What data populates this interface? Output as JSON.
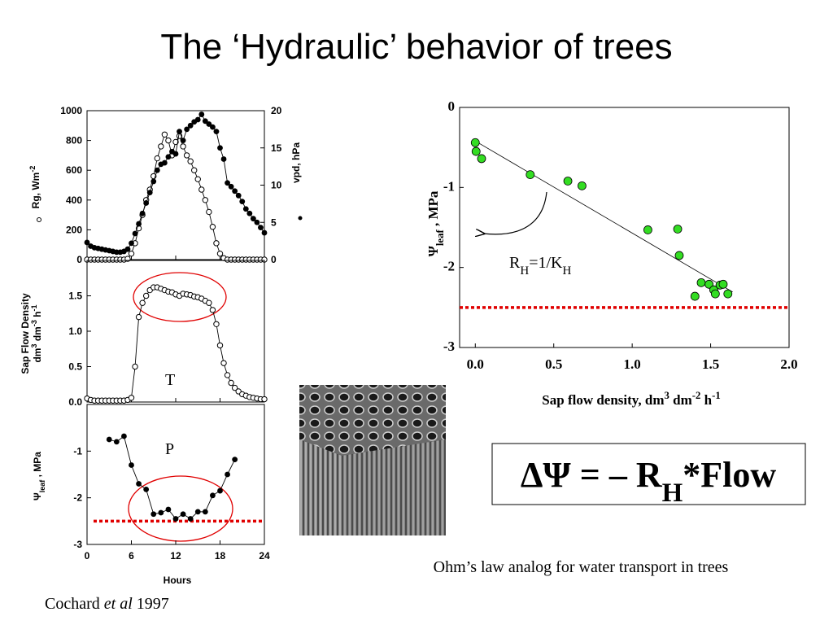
{
  "title": "The ‘Hydraulic’ behavior of trees",
  "equation": [
    {
      "text": "ΔΨ = – R"
    },
    {
      "text": "H",
      "style": "sub"
    },
    {
      "text": "*Flow"
    }
  ],
  "caption": [
    {
      "text": "Ohm’s law analog for water transport in trees"
    }
  ],
  "citation": [
    {
      "text": "Cochard "
    },
    {
      "text": "et al",
      "style": "italic"
    },
    {
      "text": " 1997"
    }
  ],
  "chart_data": [
    {
      "type": "line",
      "x": [
        0,
        0.5,
        1,
        1.5,
        2,
        2.5,
        3,
        3.5,
        4,
        4.5,
        5,
        5.5,
        6,
        6.5,
        7,
        7.5,
        8,
        8.5,
        9,
        9.5,
        10,
        10.5,
        11,
        11.5,
        12,
        12.5,
        13,
        13.5,
        14,
        14.5,
        15,
        15.5,
        16,
        16.5,
        17,
        17.5,
        18,
        18.5,
        19,
        19.5,
        20,
        20.5,
        21,
        21.5,
        22,
        22.5,
        23,
        23.5,
        24
      ],
      "xlim": [
        0,
        24
      ],
      "xticks": [
        0,
        6,
        12,
        18,
        24
      ],
      "ylim": [
        0,
        1000
      ],
      "yticks": [
        0,
        200,
        400,
        600,
        800,
        1000
      ],
      "y2lim": [
        0,
        20
      ],
      "y2ticks": [
        0,
        5,
        10,
        15,
        20
      ],
      "ylabel": [
        [
          {
            "text": "Rg, Wm"
          },
          {
            "text": "-2",
            "style": "sup"
          }
        ]
      ],
      "y2label": [
        [
          {
            "text": "vpd, hPa"
          }
        ]
      ],
      "series": [
        {
          "name": "Rg",
          "marker": "open",
          "color": "#000000",
          "values": [
            0,
            0,
            0,
            0,
            0,
            0,
            0,
            0,
            0,
            0,
            0,
            5,
            40,
            110,
            210,
            300,
            400,
            470,
            560,
            680,
            760,
            840,
            800,
            700,
            790,
            830,
            760,
            700,
            660,
            600,
            540,
            470,
            400,
            320,
            220,
            110,
            40,
            10,
            0,
            0,
            0,
            0,
            0,
            0,
            0,
            0,
            0,
            0,
            0
          ]
        },
        {
          "name": "vpd",
          "marker": "filled",
          "color": "#000000",
          "axis": "y2",
          "values": [
            2.3,
            1.8,
            1.6,
            1.5,
            1.4,
            1.3,
            1.2,
            1.1,
            1.0,
            1.0,
            1.1,
            1.4,
            2.2,
            3.5,
            4.8,
            6.2,
            7.6,
            9.0,
            10.5,
            12.0,
            12.8,
            13.0,
            13.8,
            14.5,
            14.2,
            17.2,
            16.0,
            17.5,
            18.0,
            18.5,
            18.8,
            19.5,
            18.6,
            18.2,
            17.8,
            17.2,
            15.0,
            13.5,
            10.3,
            9.8,
            9.2,
            8.6,
            7.8,
            6.8,
            6.2,
            5.5,
            5.0,
            4.3,
            3.6
          ]
        }
      ]
    },
    {
      "type": "line",
      "x": [
        0,
        0.5,
        1,
        1.5,
        2,
        2.5,
        3,
        3.5,
        4,
        4.5,
        5,
        5.5,
        6,
        6.5,
        7,
        7.5,
        8,
        8.5,
        9,
        9.5,
        10,
        10.5,
        11,
        11.5,
        12,
        12.5,
        13,
        13.5,
        14,
        14.5,
        15,
        15.5,
        16,
        16.5,
        17,
        17.5,
        18,
        18.5,
        19,
        19.5,
        20,
        20.5,
        21,
        21.5,
        22,
        22.5,
        23,
        23.5,
        24
      ],
      "xlim": [
        0,
        24
      ],
      "xticks": [
        0,
        6,
        12,
        18,
        24
      ],
      "ylim": [
        0,
        2
      ],
      "yticks": [
        {
          "value": 0,
          "label": "0.0"
        },
        {
          "value": 0.5,
          "label": "0.5"
        },
        {
          "value": 1,
          "label": "1.0"
        },
        {
          "value": 1.5,
          "label": "1.5"
        }
      ],
      "ylabel": [
        [
          {
            "text": "Sap Flow Density"
          }
        ],
        [
          {
            "text": "dm"
          },
          {
            "text": "3",
            "style": "sup"
          },
          {
            "text": " dm"
          },
          {
            "text": "-3",
            "style": "sup"
          },
          {
            "text": " h"
          },
          {
            "text": "-1",
            "style": "sup"
          }
        ]
      ],
      "annotation": "T",
      "series": [
        {
          "name": "Sap flow",
          "marker": "open",
          "color": "#000000",
          "values": [
            0.05,
            0.03,
            0.02,
            0.02,
            0.02,
            0.02,
            0.02,
            0.02,
            0.02,
            0.02,
            0.02,
            0.03,
            0.06,
            0.5,
            1.2,
            1.4,
            1.5,
            1.58,
            1.62,
            1.62,
            1.6,
            1.58,
            1.56,
            1.55,
            1.52,
            1.5,
            1.53,
            1.52,
            1.51,
            1.49,
            1.48,
            1.46,
            1.43,
            1.4,
            1.3,
            1.1,
            0.8,
            0.55,
            0.38,
            0.27,
            0.2,
            0.15,
            0.11,
            0.09,
            0.07,
            0.06,
            0.05,
            0.04,
            0.04
          ]
        }
      ]
    },
    {
      "type": "line",
      "x": [
        3,
        4,
        5,
        6,
        7,
        8,
        9,
        10,
        11,
        12,
        13,
        14,
        15,
        16,
        17,
        18,
        19,
        20
      ],
      "xlim": [
        0,
        24
      ],
      "xticks": [
        0,
        6,
        12,
        18,
        24
      ],
      "xlabel": [
        [
          {
            "text": "Hours"
          }
        ]
      ],
      "ylim": [
        -3,
        0
      ],
      "yticks": [
        -1,
        -2,
        -3
      ],
      "ylabel": [
        [
          {
            "text": "Ψ"
          },
          {
            "text": "leaf",
            "style": "sub"
          },
          {
            "text": " , MPa"
          }
        ]
      ],
      "annotation": "P",
      "threshold": -2.5,
      "threshold_color": "#e00000",
      "series": [
        {
          "name": "Psi leaf",
          "marker": "filled",
          "color": "#000000",
          "values": [
            -0.75,
            -0.8,
            -0.68,
            -1.3,
            -1.7,
            -1.82,
            -2.35,
            -2.32,
            -2.25,
            -2.45,
            -2.35,
            -2.45,
            -2.3,
            -2.3,
            -1.95,
            -1.85,
            -1.5,
            -1.18
          ]
        }
      ]
    },
    {
      "type": "scatter",
      "x": [
        0,
        0.005,
        0.04,
        0.35,
        0.59,
        0.68,
        1.1,
        1.29,
        1.3,
        1.4,
        1.44,
        1.49,
        1.52,
        1.53,
        1.56,
        1.58,
        1.61
      ],
      "xlim": [
        -0.1,
        2.0
      ],
      "xticks": [
        {
          "value": 0,
          "label": "0.0"
        },
        {
          "value": 0.5,
          "label": "0.5"
        },
        {
          "value": 1,
          "label": "1.0"
        },
        {
          "value": 1.5,
          "label": "1.5"
        },
        {
          "value": 2,
          "label": "2.0"
        }
      ],
      "ylim": [
        -3,
        0
      ],
      "yticks": [
        0,
        -1,
        -2,
        -3
      ],
      "xlabel": [
        [
          {
            "text": "Sap flow density, dm"
          },
          {
            "text": "3",
            "style": "sup"
          },
          {
            "text": " dm"
          },
          {
            "text": "-2",
            "style": "sup"
          },
          {
            "text": " h"
          },
          {
            "text": "-1",
            "style": "sup"
          }
        ]
      ],
      "ylabel": [
        [
          {
            "text": "Ψ"
          },
          {
            "text": "leaf",
            "style": "sub"
          },
          {
            "text": " , MPa"
          }
        ]
      ],
      "annotation": [
        {
          "text": "R"
        },
        {
          "text": "H",
          "style": "sub"
        },
        {
          "text": "=1/K"
        },
        {
          "text": "H",
          "style": "sub"
        }
      ],
      "threshold": -2.5,
      "threshold_color": "#e00000",
      "fit": {
        "intercept": -0.42,
        "slope": -1.15,
        "xrange": [
          0,
          1.64
        ]
      },
      "series": [
        {
          "name": "Psi leaf vs sap flow",
          "marker": "green",
          "color": "#33dd22",
          "values": [
            -0.44,
            -0.55,
            -0.64,
            -0.84,
            -0.92,
            -0.98,
            -1.53,
            -1.52,
            -1.85,
            -2.36,
            -2.19,
            -2.21,
            -2.28,
            -2.33,
            -2.22,
            -2.21,
            -2.33
          ]
        }
      ]
    }
  ]
}
